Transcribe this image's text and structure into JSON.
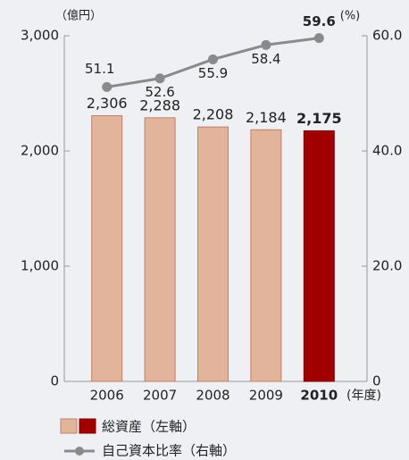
{
  "chart_data": {
    "type": "bar_line",
    "y_unit_label": "（億円）",
    "y2_unit_label": "(%)",
    "x_unit_label": "(年度)",
    "categories": [
      "2006",
      "2007",
      "2008",
      "2009",
      "2010"
    ],
    "highlight_index": 4,
    "series": [
      {
        "name": "総資産（左軸）",
        "type": "bar",
        "color": "#e3b49c",
        "highlight_color": "#a00000",
        "values": [
          2306,
          2288,
          2208,
          2184,
          2175
        ],
        "value_labels": [
          "2,306",
          "2,288",
          "2,208",
          "2,184",
          "2,175"
        ]
      },
      {
        "name": "自己資本比率（右軸）",
        "type": "line",
        "axis": "y2",
        "color": "#8a8a8a",
        "values": [
          51.1,
          52.6,
          55.9,
          58.4,
          59.6
        ]
      }
    ],
    "ylim": [
      0,
      3000
    ],
    "yticks": [
      0,
      {
        "value": 1000,
        "label": "1,000"
      },
      {
        "value": 2000,
        "label": "2,000"
      },
      {
        "value": 3000,
        "label": "3,000"
      }
    ],
    "y2lim": [
      0,
      60
    ],
    "y2ticks": [
      0,
      {
        "value": 20,
        "label": "20.0"
      },
      {
        "value": 40,
        "label": "40.0"
      },
      {
        "value": 60,
        "label": "60.0"
      }
    ]
  }
}
